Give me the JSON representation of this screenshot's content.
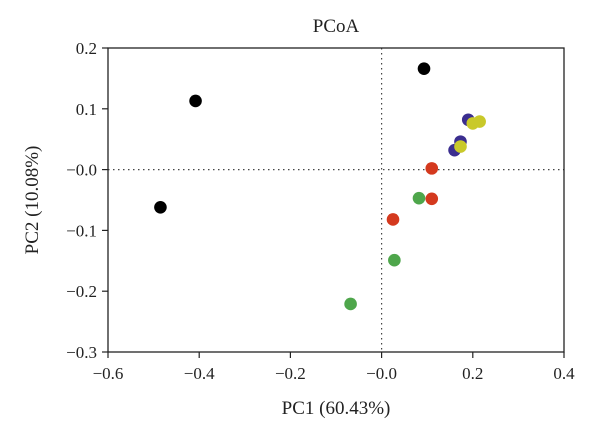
{
  "chart_data": {
    "type": "scatter",
    "title": "PCoA",
    "xlabel": "PC1 (60.43%)",
    "ylabel": "PC2 (10.08%)",
    "xlim": [
      -0.6,
      0.4
    ],
    "ylim": [
      -0.3,
      0.2
    ],
    "x_ticks": [
      -0.6,
      -0.4,
      -0.2,
      0.0,
      0.2,
      0.4
    ],
    "x_tick_labels": [
      "−0.6",
      "−0.4",
      "−0.2",
      "−0.0",
      "0.2",
      "0.4"
    ],
    "y_ticks": [
      -0.3,
      -0.2,
      -0.1,
      0.0,
      0.1,
      0.2
    ],
    "y_tick_labels": [
      "−0.3",
      "−0.2",
      "−0.1",
      "−0.0",
      "0.1",
      "0.2"
    ],
    "grid": false,
    "reference_lines": {
      "x": 0.0,
      "y": 0.0,
      "style": "dotted"
    },
    "series": [
      {
        "color": "#000000",
        "points": [
          [
            -0.485,
            -0.062
          ],
          [
            -0.408,
            0.113
          ],
          [
            0.093,
            0.166
          ]
        ]
      },
      {
        "color": "#3b2e8f",
        "points": [
          [
            0.19,
            0.082
          ],
          [
            0.173,
            0.046
          ],
          [
            0.16,
            0.032
          ]
        ]
      },
      {
        "color": "#c9c92a",
        "points": [
          [
            0.2,
            0.076
          ],
          [
            0.215,
            0.079
          ],
          [
            0.173,
            0.038
          ]
        ]
      },
      {
        "color": "#d4391e",
        "points": [
          [
            0.11,
            0.002
          ],
          [
            0.11,
            -0.048
          ],
          [
            0.025,
            -0.082
          ]
        ]
      },
      {
        "color": "#4ea64b",
        "points": [
          [
            0.082,
            -0.047
          ],
          [
            0.028,
            -0.149
          ],
          [
            -0.068,
            -0.221
          ]
        ]
      }
    ]
  }
}
